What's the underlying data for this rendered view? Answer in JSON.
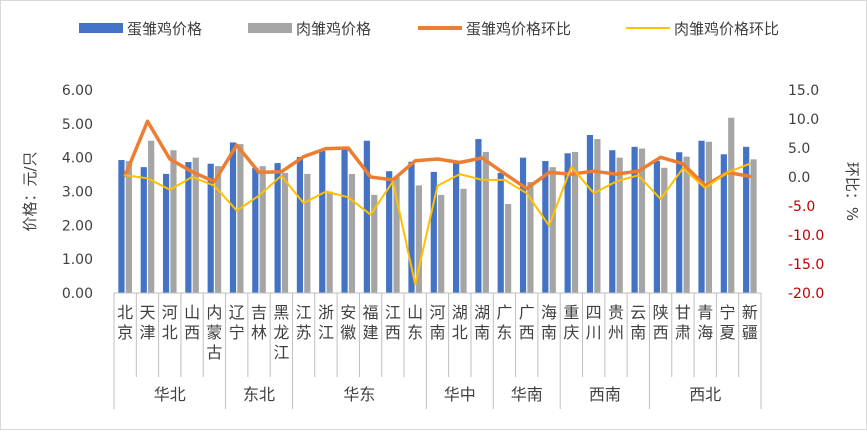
{
  "chart_data": {
    "type": "bar",
    "legend_position": "top",
    "legend": [
      {
        "name": "蛋雏鸡价格",
        "kind": "bar"
      },
      {
        "name": "肉雏鸡价格",
        "kind": "bar"
      },
      {
        "name": "蛋雏鸡价格环比",
        "kind": "line"
      },
      {
        "name": "肉雏鸡价格环比",
        "kind": "line"
      }
    ],
    "ylabel_left": "价格：元/只",
    "ylabel_right": "环比：%",
    "ylim_left": [
      0,
      6
    ],
    "ylim_right": [
      -20,
      15
    ],
    "yticks_left": [
      "0.00",
      "1.00",
      "2.00",
      "3.00",
      "4.00",
      "5.00",
      "6.00"
    ],
    "yticks_right": [
      "-20.0",
      "-15.0",
      "-10.0",
      "-5.0",
      "0.0",
      "5.0",
      "10.0",
      "15.0"
    ],
    "grid": false,
    "categories": [
      "北京",
      "天津",
      "河北",
      "山西",
      "内蒙古",
      "辽宁",
      "吉林",
      "黑龙江",
      "江苏",
      "浙江",
      "安徽",
      "福建",
      "江西",
      "山东",
      "河南",
      "湖北",
      "湖南",
      "广东",
      "广西",
      "海南",
      "重庆",
      "四川",
      "贵州",
      "云南",
      "陕西",
      "甘肃",
      "青海",
      "宁夏",
      "新疆"
    ],
    "category_labels": [
      [
        "北",
        "京"
      ],
      [
        "天",
        "津"
      ],
      [
        "河",
        "北"
      ],
      [
        "山",
        "西"
      ],
      [
        "内",
        "蒙",
        "古"
      ],
      [
        "辽",
        "宁"
      ],
      [
        "吉",
        "林"
      ],
      [
        "黑",
        "龙",
        "江"
      ],
      [
        "江",
        "苏"
      ],
      [
        "浙",
        "江"
      ],
      [
        "安",
        "徽"
      ],
      [
        "福",
        "建"
      ],
      [
        "江",
        "西"
      ],
      [
        "山",
        "东"
      ],
      [
        "河",
        "南"
      ],
      [
        "湖",
        "北"
      ],
      [
        "湖",
        "南"
      ],
      [
        "广",
        "东"
      ],
      [
        "广",
        "西"
      ],
      [
        "海",
        "南"
      ],
      [
        "重",
        "庆"
      ],
      [
        "四",
        "川"
      ],
      [
        "贵",
        "州"
      ],
      [
        "云",
        "南"
      ],
      [
        "陕",
        "西"
      ],
      [
        "甘",
        "肃"
      ],
      [
        "青",
        "海"
      ],
      [
        "宁",
        "夏"
      ],
      [
        "新",
        "疆"
      ]
    ],
    "groups": [
      {
        "name": "华北",
        "start": 0,
        "end": 4
      },
      {
        "name": "东北",
        "start": 5,
        "end": 7
      },
      {
        "name": "华东",
        "start": 8,
        "end": 13
      },
      {
        "name": "华中",
        "start": 14,
        "end": 16
      },
      {
        "name": "华南",
        "start": 17,
        "end": 19
      },
      {
        "name": "西南",
        "start": 20,
        "end": 23
      },
      {
        "name": "西北",
        "start": 24,
        "end": 28
      }
    ],
    "series": [
      {
        "name": "蛋雏鸡价格",
        "axis": "left",
        "type": "bar",
        "color": "#4472c4",
        "values": [
          3.93,
          3.72,
          3.52,
          3.87,
          3.82,
          4.45,
          3.7,
          3.84,
          4.02,
          4.2,
          4.25,
          4.5,
          3.6,
          3.88,
          3.58,
          3.9,
          4.55,
          3.55,
          4.0,
          3.9,
          4.13,
          4.67,
          4.22,
          4.32,
          3.9,
          4.16,
          4.5,
          4.1,
          4.32
        ]
      },
      {
        "name": "肉雏鸡价格",
        "axis": "left",
        "type": "bar",
        "color": "#a5a5a5",
        "values": [
          3.9,
          4.5,
          4.22,
          4.0,
          3.75,
          4.4,
          3.75,
          3.55,
          3.52,
          3.0,
          3.52,
          2.9,
          3.43,
          3.18,
          2.9,
          3.08,
          4.17,
          2.63,
          3.28,
          3.72,
          4.17,
          4.55,
          4.0,
          4.27,
          3.7,
          4.03,
          4.47,
          5.18,
          3.95
        ]
      },
      {
        "name": "蛋雏鸡价格环比",
        "axis": "right",
        "type": "line",
        "color": "#ed7d31",
        "values": [
          0.3,
          9.6,
          3.1,
          0.9,
          -0.8,
          5.5,
          0.8,
          0.9,
          3.5,
          4.9,
          5.0,
          0.0,
          -0.5,
          2.8,
          3.1,
          2.5,
          3.3,
          0.6,
          -2.0,
          0.8,
          0.5,
          1.0,
          0.5,
          1.0,
          3.4,
          2.3,
          -1.5,
          0.8,
          0.1
        ]
      },
      {
        "name": "肉雏鸡价格环比",
        "axis": "right",
        "type": "line",
        "color": "#ffc000",
        "values": [
          0.3,
          -0.2,
          -2.2,
          0.0,
          -1.5,
          -5.8,
          -3.2,
          0.2,
          -4.5,
          -2.5,
          -3.5,
          -6.5,
          -0.8,
          -18.5,
          -1.5,
          0.5,
          -0.5,
          -0.5,
          -2.8,
          -8.4,
          1.8,
          -2.8,
          -0.8,
          0.3,
          -3.8,
          1.5,
          -1.9,
          0.8,
          2.3
        ]
      }
    ]
  }
}
